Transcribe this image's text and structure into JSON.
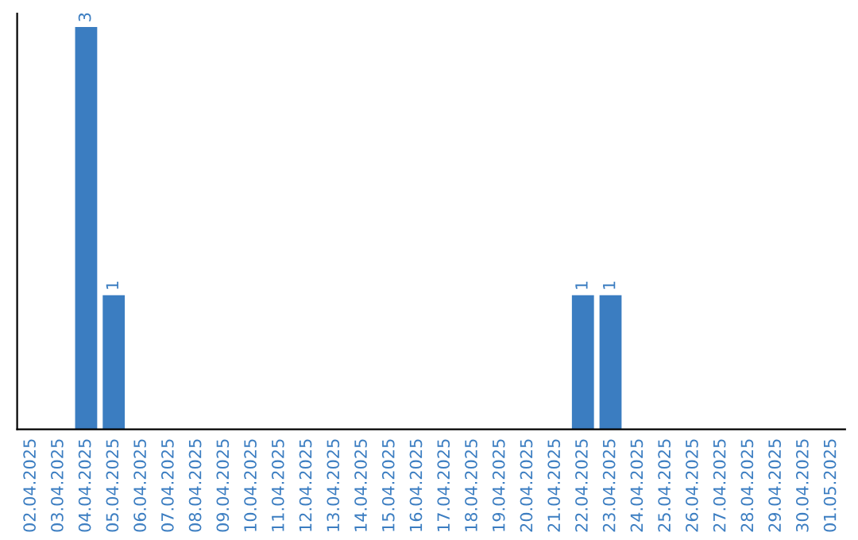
{
  "chart_data": {
    "type": "bar",
    "categories": [
      "02.04.2025",
      "03.04.2025",
      "04.04.2025",
      "05.04.2025",
      "06.04.2025",
      "07.04.2025",
      "08.04.2025",
      "09.04.2025",
      "10.04.2025",
      "11.04.2025",
      "12.04.2025",
      "13.04.2025",
      "14.04.2025",
      "15.04.2025",
      "16.04.2025",
      "17.04.2025",
      "18.04.2025",
      "19.04.2025",
      "20.04.2025",
      "21.04.2025",
      "22.04.2025",
      "23.04.2025",
      "24.04.2025",
      "25.04.2025",
      "26.04.2025",
      "27.04.2025",
      "28.04.2025",
      "29.04.2025",
      "30.04.2025",
      "01.05.2025"
    ],
    "values": [
      0,
      0,
      3,
      1,
      0,
      0,
      0,
      0,
      0,
      0,
      0,
      0,
      0,
      0,
      0,
      0,
      0,
      0,
      0,
      0,
      1,
      1,
      0,
      0,
      0,
      0,
      0,
      0,
      0,
      0
    ],
    "value_labels": [
      null,
      null,
      "3",
      "1",
      null,
      null,
      null,
      null,
      null,
      null,
      null,
      null,
      null,
      null,
      null,
      null,
      null,
      null,
      null,
      null,
      "1",
      "1",
      null,
      null,
      null,
      null,
      null,
      null,
      null,
      null
    ],
    "color": "#3b7dc1",
    "ylim": [
      0,
      3.1
    ],
    "tick_labels": "x",
    "grid": false,
    "legend": false
  }
}
